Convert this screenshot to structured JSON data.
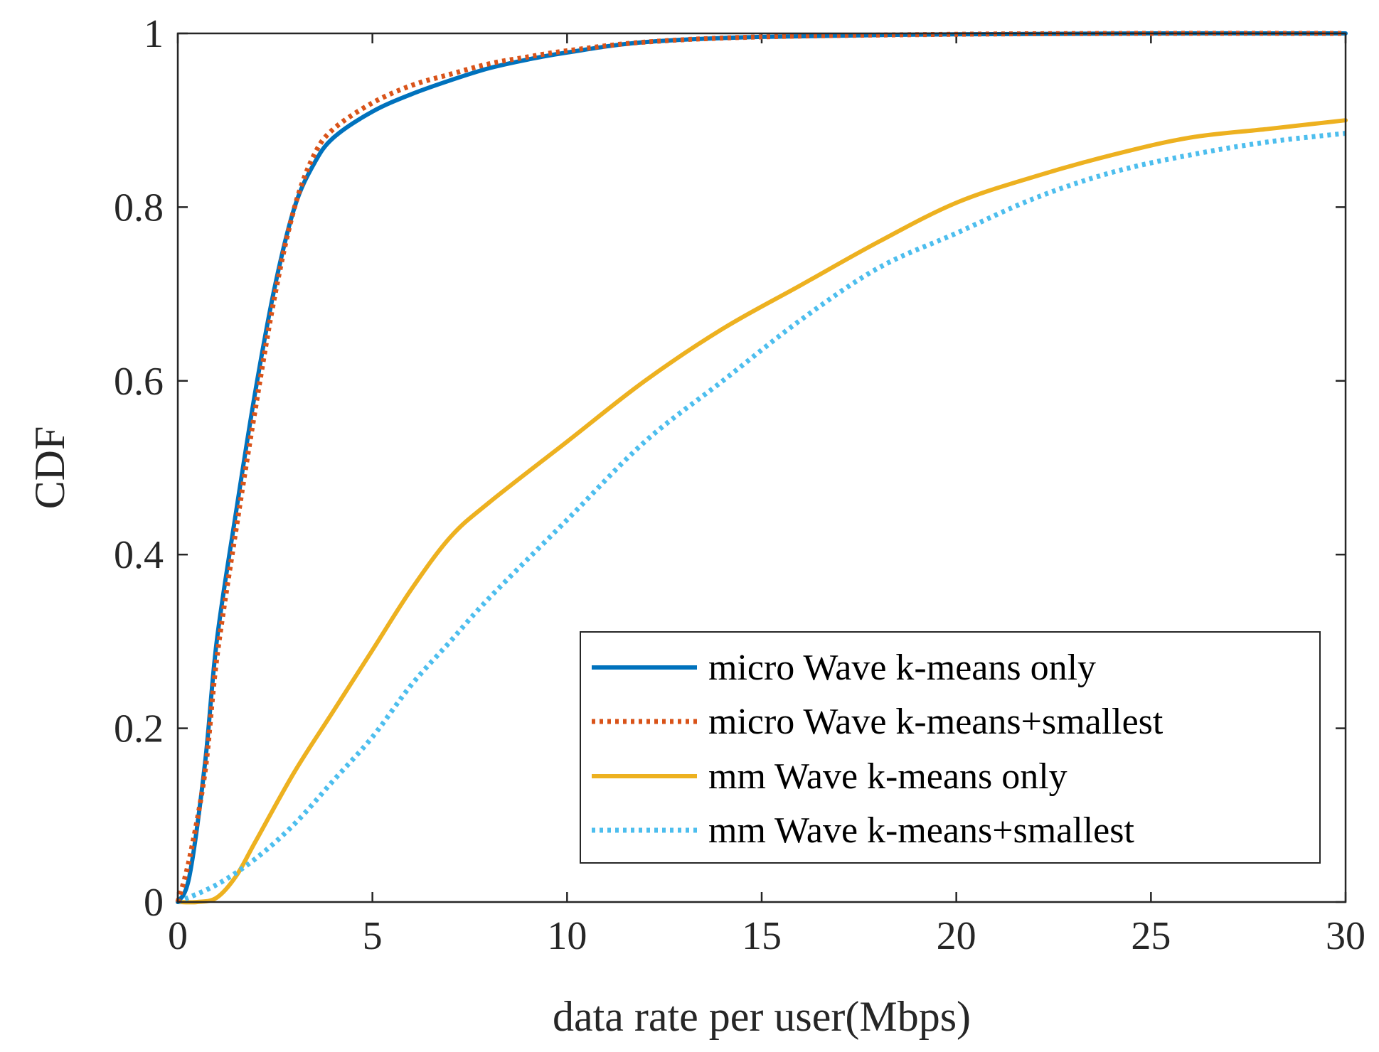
{
  "chart_data": {
    "type": "line",
    "title": "",
    "xlabel": "data rate per user(Mbps)",
    "ylabel": "CDF",
    "xlim": [
      0,
      30
    ],
    "ylim": [
      0,
      1
    ],
    "xticks": [
      "0",
      "5",
      "10",
      "15",
      "20",
      "25",
      "30"
    ],
    "yticks": [
      "0",
      "0.2",
      "0.4",
      "0.6",
      "0.8",
      "1"
    ],
    "grid": false,
    "legend_position": "bottom-right",
    "series": [
      {
        "name": "micro Wave k-means only",
        "color": "#0072BD",
        "style": "solid",
        "x": [
          0,
          0.3,
          0.7,
          1,
          1.5,
          2,
          2.5,
          3,
          3.5,
          4,
          5,
          6,
          7,
          8,
          9,
          10,
          12,
          15,
          20,
          25,
          30
        ],
        "y": [
          0,
          0.03,
          0.16,
          0.3,
          0.45,
          0.59,
          0.71,
          0.8,
          0.85,
          0.88,
          0.91,
          0.93,
          0.946,
          0.96,
          0.97,
          0.978,
          0.99,
          0.996,
          0.999,
          1.0,
          1.0
        ]
      },
      {
        "name": "micro Wave k-means+smallest",
        "color": "#D95319",
        "style": "dotted",
        "x": [
          0,
          0.3,
          0.7,
          1,
          1.5,
          2,
          2.5,
          3,
          3.5,
          4,
          5,
          6,
          7,
          8,
          9,
          10,
          12,
          15,
          20,
          25,
          30
        ],
        "y": [
          0,
          0.05,
          0.15,
          0.28,
          0.43,
          0.57,
          0.7,
          0.8,
          0.86,
          0.89,
          0.92,
          0.94,
          0.953,
          0.965,
          0.973,
          0.98,
          0.99,
          0.996,
          0.999,
          1.0,
          1.0
        ]
      },
      {
        "name": "mm Wave k-means only",
        "color": "#EDB120",
        "style": "solid",
        "x": [
          0,
          0.5,
          1,
          1.5,
          2,
          3,
          4,
          5,
          6,
          7,
          8,
          10,
          12,
          14,
          16,
          18,
          20,
          22,
          24,
          26,
          28,
          30
        ],
        "y": [
          0,
          0.0,
          0.005,
          0.03,
          0.07,
          0.15,
          0.22,
          0.29,
          0.36,
          0.42,
          0.46,
          0.53,
          0.6,
          0.66,
          0.71,
          0.76,
          0.805,
          0.835,
          0.86,
          0.88,
          0.89,
          0.9
        ]
      },
      {
        "name": "mm Wave k-means+smallest",
        "color": "#4DBEEE",
        "style": "dotted",
        "x": [
          0,
          1,
          2,
          3,
          4,
          5,
          6,
          7,
          8,
          10,
          12,
          14,
          16,
          18,
          20,
          22,
          24,
          26,
          28,
          30
        ],
        "y": [
          0,
          0.02,
          0.05,
          0.09,
          0.14,
          0.19,
          0.25,
          0.3,
          0.35,
          0.44,
          0.53,
          0.6,
          0.67,
          0.73,
          0.77,
          0.81,
          0.84,
          0.86,
          0.875,
          0.885
        ]
      }
    ]
  }
}
